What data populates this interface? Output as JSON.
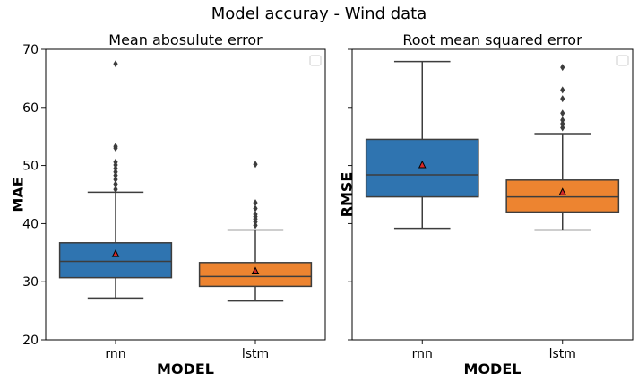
{
  "figure": {
    "title": "Model accuray - Wind data"
  },
  "chart_data": [
    {
      "type": "box",
      "title": "Mean abosulute error",
      "xlabel": "MODEL",
      "ylabel": "MAE",
      "ylim": [
        20,
        70
      ],
      "yticks": [
        20,
        30,
        40,
        50,
        60,
        70
      ],
      "show_ytick_labels": true,
      "grid": false,
      "legend": "top-right",
      "categories": [
        "rnn",
        "lstm"
      ],
      "boxes": [
        {
          "category": "rnn",
          "color": "#2f74b0",
          "whisker_low": 27.2,
          "q1": 30.7,
          "median": 33.5,
          "q3": 36.7,
          "whisker_high": 45.4,
          "mean": 34.8,
          "outliers": [
            45.9,
            46.8,
            47.6,
            48.3,
            48.9,
            49.5,
            50.1,
            50.6,
            53.0,
            53.3,
            67.5
          ]
        },
        {
          "category": "lstm",
          "color": "#ed8430",
          "whisker_low": 26.7,
          "q1": 29.2,
          "median": 30.9,
          "q3": 33.3,
          "whisker_high": 38.9,
          "mean": 31.8,
          "outliers": [
            39.7,
            40.3,
            40.8,
            41.2,
            41.6,
            42.6,
            43.6,
            50.2
          ]
        }
      ]
    },
    {
      "type": "box",
      "title": "Root mean squared error",
      "xlabel": "MODEL",
      "ylabel": "RMSE",
      "ylim": [
        20,
        70
      ],
      "yticks": [
        20,
        30,
        40,
        50,
        60,
        70
      ],
      "show_ytick_labels": false,
      "grid": false,
      "legend": "top-right",
      "categories": [
        "rnn",
        "lstm"
      ],
      "boxes": [
        {
          "category": "rnn",
          "color": "#2f74b0",
          "whisker_low": 39.2,
          "q1": 44.6,
          "median": 48.4,
          "q3": 54.5,
          "whisker_high": 67.9,
          "mean": 50.1,
          "outliers": []
        },
        {
          "category": "lstm",
          "color": "#ed8430",
          "whisker_low": 38.9,
          "q1": 42.0,
          "median": 44.6,
          "q3": 47.5,
          "whisker_high": 55.5,
          "mean": 45.4,
          "outliers": [
            56.5,
            57.2,
            57.8,
            59.0,
            61.5,
            63.0,
            66.9
          ]
        }
      ]
    }
  ]
}
